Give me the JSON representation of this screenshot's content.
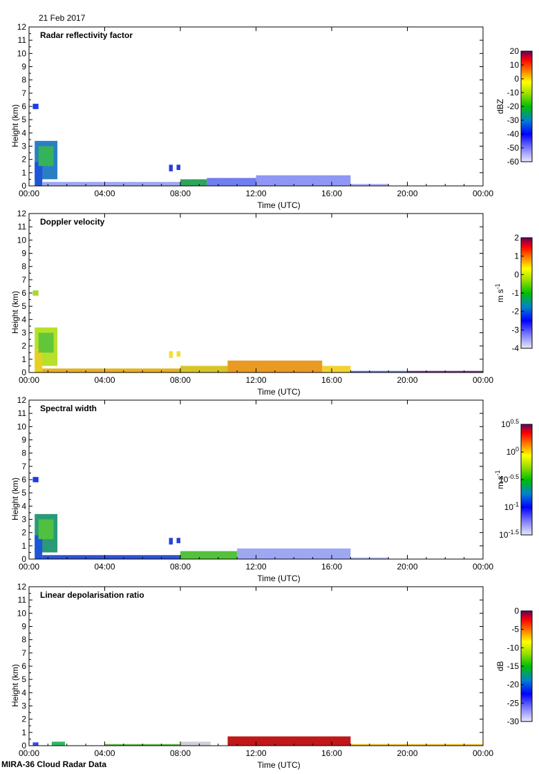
{
  "header": {
    "date": "21 Feb 2017"
  },
  "footer": {
    "caption": "MIRA-36 Cloud Radar Data"
  },
  "chart_data": [
    {
      "type": "heatmap",
      "title": "Radar reflectivity factor",
      "xlabel": "Time (UTC)",
      "ylabel": "Height (km)",
      "x_ticks": [
        "00:00",
        "04:00",
        "08:00",
        "12:00",
        "16:00",
        "20:00",
        "00:00"
      ],
      "y_ticks": [
        "0",
        "1",
        "2",
        "3",
        "4",
        "5",
        "6",
        "7",
        "8",
        "9",
        "10",
        "11",
        "12"
      ],
      "xlim_hours": [
        0,
        24
      ],
      "ylim": [
        0,
        12
      ],
      "colorbar": {
        "label": "dBZ",
        "scale": "linear",
        "range": [
          -60,
          20
        ],
        "ticks": [
          "20",
          "10",
          "0",
          "-10",
          "-20",
          "-30",
          "-40",
          "-50",
          "-60"
        ]
      },
      "regions": [
        {
          "t0": 0.2,
          "t1": 0.5,
          "h0": 5.8,
          "h1": 6.2,
          "color": "#1a3be8"
        },
        {
          "t0": 0.3,
          "t1": 1.5,
          "h0": 0.5,
          "h1": 3.4,
          "color": "#2a7fc4"
        },
        {
          "t0": 0.3,
          "t1": 0.7,
          "h0": 0.0,
          "h1": 1.8,
          "color": "#1f56d9"
        },
        {
          "t0": 0.5,
          "t1": 1.3,
          "h0": 1.5,
          "h1": 3.0,
          "color": "#35b25a"
        },
        {
          "t0": 0.7,
          "t1": 8.0,
          "h0": 0.0,
          "h1": 0.3,
          "color": "#9ea7f2"
        },
        {
          "t0": 7.4,
          "t1": 7.6,
          "h0": 1.1,
          "h1": 1.6,
          "color": "#2a3fe0"
        },
        {
          "t0": 7.8,
          "t1": 8.0,
          "h0": 1.2,
          "h1": 1.6,
          "color": "#2a3fe0"
        },
        {
          "t0": 8.0,
          "t1": 9.4,
          "h0": 0.0,
          "h1": 0.5,
          "color": "#2fa55a"
        },
        {
          "t0": 9.4,
          "t1": 12.0,
          "h0": 0.0,
          "h1": 0.6,
          "color": "#6f7ef0"
        },
        {
          "t0": 12.0,
          "t1": 17.0,
          "h0": 0.0,
          "h1": 0.8,
          "color": "#8e97f3"
        },
        {
          "t0": 17.0,
          "t1": 19.0,
          "h0": 0.0,
          "h1": 0.15,
          "color": "#aab2f6"
        }
      ]
    },
    {
      "type": "heatmap",
      "title": "Doppler velocity",
      "xlabel": "Time (UTC)",
      "ylabel": "Height (km)",
      "x_ticks": [
        "00:00",
        "04:00",
        "08:00",
        "12:00",
        "16:00",
        "20:00",
        "00:00"
      ],
      "y_ticks": [
        "0",
        "1",
        "2",
        "3",
        "4",
        "5",
        "6",
        "7",
        "8",
        "9",
        "10",
        "11",
        "12"
      ],
      "xlim_hours": [
        0,
        24
      ],
      "ylim": [
        0,
        12
      ],
      "colorbar": {
        "label": "m s",
        "label_sup": "-1",
        "scale": "linear",
        "range": [
          -4,
          2
        ],
        "ticks": [
          "2",
          "1",
          "0",
          "-1",
          "-2",
          "-3",
          "-4"
        ]
      },
      "regions": [
        {
          "t0": 0.2,
          "t1": 0.5,
          "h0": 5.8,
          "h1": 6.2,
          "color": "#a8d830"
        },
        {
          "t0": 0.3,
          "t1": 1.5,
          "h0": 0.5,
          "h1": 3.4,
          "color": "#b6e02a"
        },
        {
          "t0": 0.3,
          "t1": 0.7,
          "h0": 0.0,
          "h1": 1.8,
          "color": "#e8d020"
        },
        {
          "t0": 0.5,
          "t1": 1.3,
          "h0": 1.5,
          "h1": 3.0,
          "color": "#62c63a"
        },
        {
          "t0": 0.7,
          "t1": 8.0,
          "h0": 0.0,
          "h1": 0.3,
          "color": "#e6b020"
        },
        {
          "t0": 7.4,
          "t1": 7.6,
          "h0": 1.1,
          "h1": 1.6,
          "color": "#f0e030"
        },
        {
          "t0": 7.8,
          "t1": 8.0,
          "h0": 1.2,
          "h1": 1.6,
          "color": "#f0e030"
        },
        {
          "t0": 8.0,
          "t1": 10.5,
          "h0": 0.0,
          "h1": 0.5,
          "color": "#d7c428"
        },
        {
          "t0": 10.5,
          "t1": 15.5,
          "h0": 0.0,
          "h1": 0.9,
          "color": "#ea9a22"
        },
        {
          "t0": 15.5,
          "t1": 17.0,
          "h0": 0.0,
          "h1": 0.5,
          "color": "#f2d230"
        },
        {
          "t0": 17.0,
          "t1": 20.0,
          "h0": 0.0,
          "h1": 0.12,
          "color": "#6070e0"
        },
        {
          "t0": 20.0,
          "t1": 24.0,
          "h0": 0.0,
          "h1": 0.12,
          "color": "#7a2a8a"
        }
      ]
    },
    {
      "type": "heatmap",
      "title": "Spectral width",
      "xlabel": "Time (UTC)",
      "ylabel": "Height (km)",
      "x_ticks": [
        "00:00",
        "04:00",
        "08:00",
        "12:00",
        "16:00",
        "20:00",
        "00:00"
      ],
      "y_ticks": [
        "0",
        "1",
        "2",
        "3",
        "4",
        "5",
        "6",
        "7",
        "8",
        "9",
        "10",
        "11",
        "12"
      ],
      "xlim_hours": [
        0,
        24
      ],
      "ylim": [
        0,
        12
      ],
      "colorbar": {
        "label": "m s",
        "label_sup": "-1",
        "scale": "log",
        "range": [
          -1.5,
          0.5
        ],
        "ticks": [
          {
            "base": "10",
            "exp": "0.5"
          },
          {
            "base": "10",
            "exp": "0"
          },
          {
            "base": "10",
            "exp": "-0.5"
          },
          {
            "base": "10",
            "exp": "-1"
          },
          {
            "base": "10",
            "exp": "-1.5"
          }
        ]
      },
      "regions": [
        {
          "t0": 0.2,
          "t1": 0.5,
          "h0": 5.8,
          "h1": 6.2,
          "color": "#1a3be8"
        },
        {
          "t0": 0.3,
          "t1": 1.5,
          "h0": 0.5,
          "h1": 3.4,
          "color": "#2a9a78"
        },
        {
          "t0": 0.3,
          "t1": 0.7,
          "h0": 0.0,
          "h1": 1.8,
          "color": "#1f56d9"
        },
        {
          "t0": 0.5,
          "t1": 1.3,
          "h0": 1.5,
          "h1": 3.0,
          "color": "#4fc040"
        },
        {
          "t0": 0.7,
          "t1": 8.0,
          "h0": 0.0,
          "h1": 0.3,
          "color": "#2c52d8"
        },
        {
          "t0": 7.4,
          "t1": 7.6,
          "h0": 1.1,
          "h1": 1.6,
          "color": "#2a3fe0"
        },
        {
          "t0": 7.8,
          "t1": 8.0,
          "h0": 1.2,
          "h1": 1.6,
          "color": "#2a3fe0"
        },
        {
          "t0": 8.0,
          "t1": 11.0,
          "h0": 0.0,
          "h1": 0.6,
          "color": "#53c23a"
        },
        {
          "t0": 11.0,
          "t1": 17.0,
          "h0": 0.0,
          "h1": 0.8,
          "color": "#9ea7f2"
        },
        {
          "t0": 17.0,
          "t1": 19.0,
          "h0": 0.0,
          "h1": 0.12,
          "color": "#b8bef6"
        }
      ]
    },
    {
      "type": "heatmap",
      "title": "Linear depolarisation ratio",
      "xlabel": "Time (UTC)",
      "ylabel": "Height (km)",
      "x_ticks": [
        "00:00",
        "04:00",
        "08:00",
        "12:00",
        "16:00",
        "20:00",
        "00:00"
      ],
      "y_ticks": [
        "0",
        "1",
        "2",
        "3",
        "4",
        "5",
        "6",
        "7",
        "8",
        "9",
        "10",
        "11",
        "12"
      ],
      "xlim_hours": [
        0,
        24
      ],
      "ylim": [
        0,
        12
      ],
      "colorbar": {
        "label": "dB",
        "scale": "linear",
        "range": [
          -30,
          0
        ],
        "ticks": [
          "0",
          "-5",
          "-10",
          "-15",
          "-20",
          "-25",
          "-30"
        ]
      },
      "regions": [
        {
          "t0": 0.2,
          "t1": 0.5,
          "h0": 0.0,
          "h1": 0.25,
          "color": "#3a50e0"
        },
        {
          "t0": 1.2,
          "t1": 1.9,
          "h0": 0.0,
          "h1": 0.3,
          "color": "#30b860"
        },
        {
          "t0": 4.0,
          "t1": 8.0,
          "h0": 0.0,
          "h1": 0.12,
          "color": "#5ab840"
        },
        {
          "t0": 8.0,
          "t1": 9.6,
          "h0": 0.0,
          "h1": 0.3,
          "color": "#cfcfd8"
        },
        {
          "t0": 10.5,
          "t1": 17.0,
          "h0": 0.0,
          "h1": 0.7,
          "color": "#c01818"
        },
        {
          "t0": 17.0,
          "t1": 24.0,
          "h0": 0.0,
          "h1": 0.12,
          "color": "#e8c020"
        }
      ]
    }
  ]
}
